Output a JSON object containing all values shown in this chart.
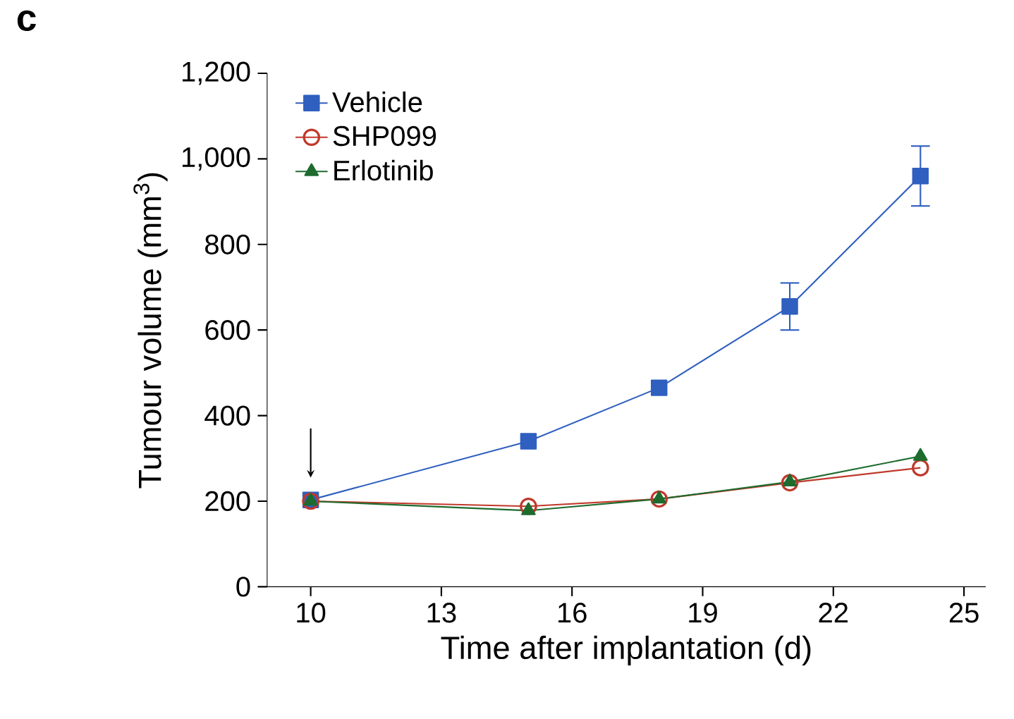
{
  "chart_data": {
    "type": "line",
    "xlabel": "Time after implantation (d)",
    "ylabel": "Tumour volume (mm$^{3}$)",
    "annotations": [
      "c"
    ],
    "x": [
      10,
      15,
      18,
      21,
      24
    ],
    "series": [
      {
        "name": "Vehicle",
        "color": "#2f5fbf",
        "marker": "square",
        "values": [
          203,
          340,
          465,
          655,
          960
        ],
        "errors": [
          null,
          null,
          null,
          [
            600,
            710
          ],
          [
            890,
            1030
          ]
        ]
      },
      {
        "name": "SHP099",
        "color": "#c0392b",
        "marker": "circle",
        "values": [
          200,
          188,
          205,
          243,
          278
        ]
      },
      {
        "name": "Erlotinib",
        "color": "#1e6b2e",
        "marker": "triangle",
        "values": [
          200,
          178,
          205,
          245,
          305
        ]
      }
    ],
    "xlim": [
      9,
      25.5
    ],
    "ylim": [
      0,
      1200
    ],
    "xticks": [
      10,
      13,
      16,
      19,
      22,
      25
    ],
    "yticks": [
      0,
      200,
      400,
      600,
      800,
      {
        "value": 1000,
        "label": "1,000"
      },
      {
        "value": 1200,
        "label": "1,200"
      }
    ],
    "legend": "top left",
    "line_style": "solid"
  }
}
